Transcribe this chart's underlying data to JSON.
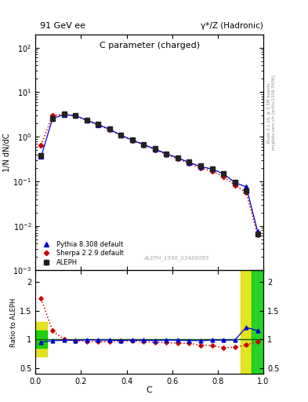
{
  "title_left": "91 GeV ee",
  "title_right": "γ*/Z (Hadronic)",
  "plot_title": "C parameter (charged)",
  "xlabel": "C",
  "ylabel_main": "1/N dN/dC",
  "ylabel_ratio": "Ratio to ALEPH",
  "right_label_top": "Rivet 3.1.10, ≥ 3.5M events",
  "right_label_bot": "mcplots.cern.ch [arXiv:1306.3436]",
  "watermark": "ALEPH_1996_S3486095",
  "aleph_x": [
    0.025,
    0.075,
    0.125,
    0.175,
    0.225,
    0.275,
    0.325,
    0.375,
    0.425,
    0.475,
    0.525,
    0.575,
    0.625,
    0.675,
    0.725,
    0.775,
    0.825,
    0.875,
    0.925,
    0.975
  ],
  "aleph_y": [
    0.38,
    2.6,
    3.2,
    3.0,
    2.4,
    1.9,
    1.5,
    1.1,
    0.85,
    0.68,
    0.54,
    0.42,
    0.34,
    0.27,
    0.22,
    0.19,
    0.15,
    0.095,
    0.062,
    0.0065
  ],
  "aleph_yerr": [
    0.04,
    0.08,
    0.07,
    0.06,
    0.05,
    0.04,
    0.03,
    0.025,
    0.02,
    0.015,
    0.012,
    0.01,
    0.008,
    0.007,
    0.006,
    0.005,
    0.004,
    0.003,
    0.002,
    0.0005
  ],
  "pythia_x": [
    0.025,
    0.075,
    0.125,
    0.175,
    0.225,
    0.275,
    0.325,
    0.375,
    0.425,
    0.475,
    0.525,
    0.575,
    0.625,
    0.675,
    0.725,
    0.775,
    0.825,
    0.875,
    0.925,
    0.975
  ],
  "pythia_y": [
    0.36,
    2.55,
    3.15,
    2.95,
    2.38,
    1.88,
    1.48,
    1.08,
    0.84,
    0.67,
    0.53,
    0.415,
    0.335,
    0.265,
    0.215,
    0.188,
    0.148,
    0.094,
    0.075,
    0.0075
  ],
  "sherpa_x": [
    0.025,
    0.075,
    0.125,
    0.175,
    0.225,
    0.275,
    0.325,
    0.375,
    0.425,
    0.475,
    0.525,
    0.575,
    0.625,
    0.675,
    0.725,
    0.775,
    0.825,
    0.875,
    0.925,
    0.975
  ],
  "sherpa_y": [
    0.65,
    3.0,
    3.2,
    2.95,
    2.32,
    1.82,
    1.44,
    1.07,
    0.83,
    0.655,
    0.515,
    0.398,
    0.318,
    0.252,
    0.198,
    0.17,
    0.128,
    0.082,
    0.056,
    0.0063
  ],
  "pythia_ratio": [
    0.95,
    0.98,
    0.985,
    0.983,
    0.992,
    0.99,
    0.987,
    0.982,
    0.988,
    0.985,
    0.982,
    0.988,
    0.985,
    0.981,
    0.977,
    0.989,
    0.987,
    0.989,
    1.21,
    1.15
  ],
  "sherpa_ratio": [
    1.71,
    1.15,
    1.0,
    0.983,
    0.967,
    0.958,
    0.96,
    0.973,
    0.976,
    0.963,
    0.954,
    0.948,
    0.935,
    0.933,
    0.9,
    0.895,
    0.853,
    0.863,
    0.903,
    0.969
  ],
  "aleph_color": "#222222",
  "pythia_color": "#0000cc",
  "sherpa_color": "#cc0000",
  "band_yellow": "#dddd00",
  "band_green": "#00cc00",
  "ylim_main": [
    0.001,
    200
  ],
  "ylim_ratio": [
    0.4,
    2.2
  ],
  "xlim": [
    0.0,
    1.0
  ]
}
